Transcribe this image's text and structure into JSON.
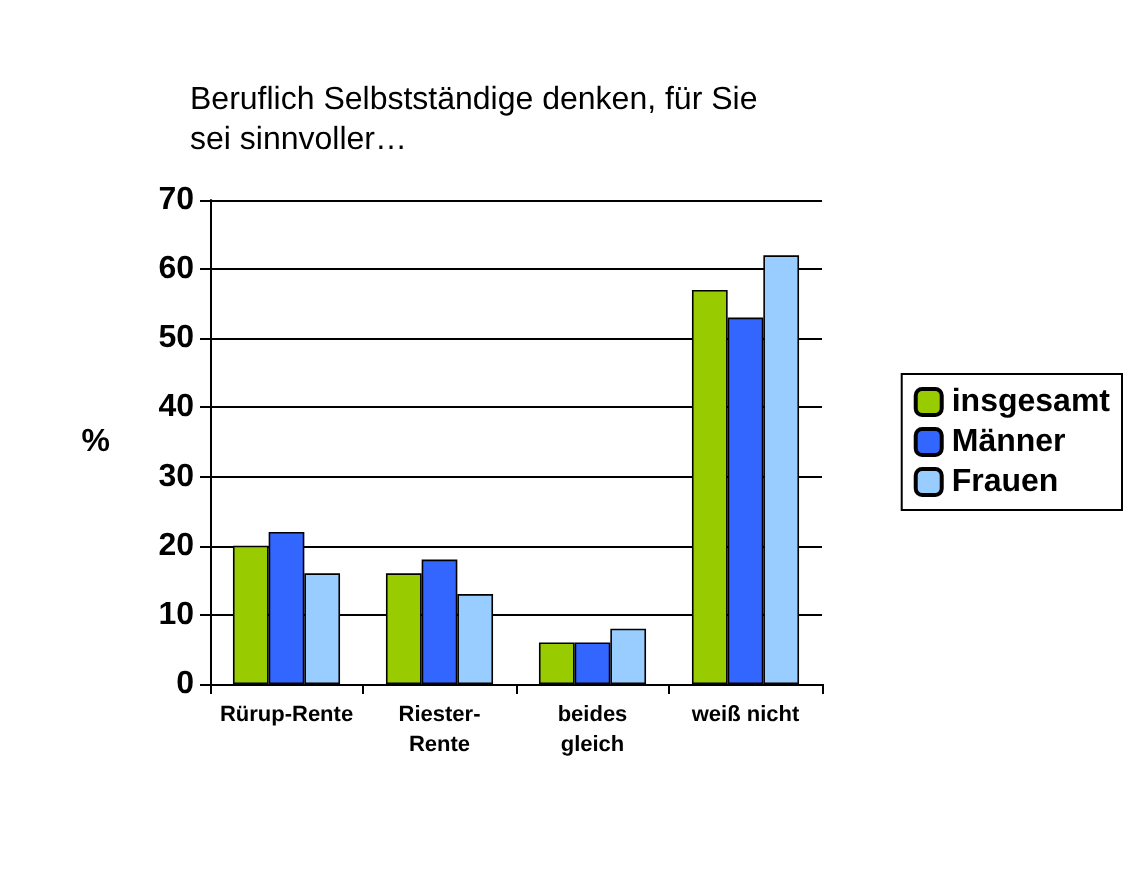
{
  "chart_data": {
    "type": "bar",
    "title": "Beruflich Selbstständige denken, für Sie\nsei sinnvoller…",
    "ylabel": "%",
    "categories": [
      "Rürup-Rente",
      "Riester-\nRente",
      "beides\ngleich",
      "weiß nicht"
    ],
    "series": [
      {
        "name": "insgesamt",
        "color": "#99cc00",
        "values": [
          20,
          16,
          6,
          57
        ]
      },
      {
        "name": "Männer",
        "color": "#3366ff",
        "values": [
          22,
          18,
          6,
          53
        ]
      },
      {
        "name": "Frauen",
        "color": "#99ccff",
        "values": [
          16,
          13,
          8,
          62
        ]
      }
    ],
    "ylim": [
      0,
      70
    ],
    "yticks": [
      0,
      10,
      20,
      30,
      40,
      50,
      60,
      70
    ],
    "grid": "y",
    "legend": "right"
  }
}
